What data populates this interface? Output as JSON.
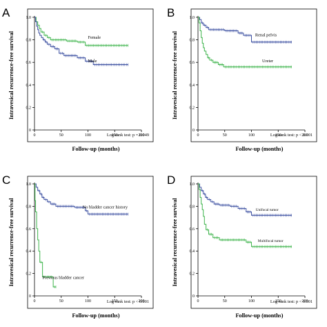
{
  "chart_data": [
    {
      "type": "line",
      "panel_label": "A",
      "title": "",
      "xlabel": "Follow-up (months)",
      "ylabel": "Intravesical recurrence-free survival",
      "xlim": [
        0,
        200
      ],
      "ylim": [
        0,
        1.0
      ],
      "x_ticks": [
        0,
        50,
        100,
        150,
        200
      ],
      "y_ticks": [
        0,
        0.2,
        0.4,
        0.6,
        0.8,
        1.0
      ],
      "y_tick_labels": [
        "0",
        "0.2",
        "0.4",
        "0.6",
        "0.8",
        "1.0"
      ],
      "annotation": "Log-rank test: p = 0.049",
      "series": [
        {
          "name": "Female",
          "color": "#3cb34a",
          "label_at": [
            100,
            0.81
          ],
          "steps": [
            [
              0,
              1.0
            ],
            [
              3,
              0.96
            ],
            [
              6,
              0.93
            ],
            [
              9,
              0.9
            ],
            [
              12,
              0.87
            ],
            [
              18,
              0.84
            ],
            [
              24,
              0.82
            ],
            [
              30,
              0.8
            ],
            [
              60,
              0.79
            ],
            [
              80,
              0.78
            ],
            [
              95,
              0.75
            ],
            [
              175,
              0.75
            ]
          ]
        },
        {
          "name": "Male",
          "color": "#3a4ea0",
          "label_at": [
            100,
            0.6
          ],
          "steps": [
            [
              0,
              1.0
            ],
            [
              2,
              0.96
            ],
            [
              4,
              0.92
            ],
            [
              6,
              0.89
            ],
            [
              8,
              0.86
            ],
            [
              10,
              0.84
            ],
            [
              13,
              0.82
            ],
            [
              16,
              0.8
            ],
            [
              20,
              0.78
            ],
            [
              24,
              0.76
            ],
            [
              30,
              0.74
            ],
            [
              38,
              0.72
            ],
            [
              46,
              0.68
            ],
            [
              55,
              0.66
            ],
            [
              80,
              0.64
            ],
            [
              95,
              0.61
            ],
            [
              110,
              0.58
            ],
            [
              175,
              0.58
            ]
          ]
        }
      ]
    },
    {
      "type": "line",
      "panel_label": "B",
      "title": "",
      "xlabel": "Follow-up (months)",
      "ylabel": "Intravesical recurrence-free survival",
      "xlim": [
        0,
        200
      ],
      "ylim": [
        0,
        1.0
      ],
      "x_ticks": [
        0,
        50,
        100,
        150,
        200
      ],
      "y_ticks": [
        0,
        0.2,
        0.4,
        0.6,
        0.8,
        1.0
      ],
      "y_tick_labels": [
        "0",
        "0.2",
        "0.4",
        "0.6",
        "0.8",
        "1.0"
      ],
      "annotation": "Log-rank test: p < 0.001",
      "series": [
        {
          "name": "Renal pelvis",
          "color": "#3a4ea0",
          "label_at": [
            107,
            0.83
          ],
          "steps": [
            [
              0,
              1.0
            ],
            [
              3,
              0.98
            ],
            [
              6,
              0.95
            ],
            [
              10,
              0.93
            ],
            [
              15,
              0.91
            ],
            [
              20,
              0.89
            ],
            [
              50,
              0.88
            ],
            [
              75,
              0.86
            ],
            [
              85,
              0.84
            ],
            [
              100,
              0.78
            ],
            [
              175,
              0.78
            ]
          ]
        },
        {
          "name": "Ureter",
          "color": "#3cb34a",
          "label_at": [
            120,
            0.6
          ],
          "steps": [
            [
              0,
              1.0
            ],
            [
              2,
              0.95
            ],
            [
              4,
              0.88
            ],
            [
              6,
              0.82
            ],
            [
              8,
              0.77
            ],
            [
              10,
              0.73
            ],
            [
              12,
              0.7
            ],
            [
              15,
              0.67
            ],
            [
              18,
              0.64
            ],
            [
              22,
              0.62
            ],
            [
              28,
              0.6
            ],
            [
              38,
              0.58
            ],
            [
              48,
              0.56
            ],
            [
              175,
              0.56
            ]
          ]
        }
      ]
    },
    {
      "type": "line",
      "panel_label": "C",
      "title": "",
      "xlabel": "Follow-up (months)",
      "ylabel": "Intravesical recurrence-free survival",
      "xlim": [
        0,
        200
      ],
      "ylim": [
        0,
        1.0
      ],
      "x_ticks": [
        0,
        50,
        100,
        150,
        200
      ],
      "y_ticks": [
        0,
        0.2,
        0.4,
        0.6,
        0.8,
        1.0
      ],
      "y_tick_labels": [
        "0",
        "0.2",
        "0.4",
        "0.6",
        "0.8",
        "1.0"
      ],
      "annotation": "Log-rank test: p < 0.001",
      "series": [
        {
          "name": "No bladder cancer history",
          "color": "#3a4ea0",
          "label_at": [
            90,
            0.78
          ],
          "steps": [
            [
              0,
              1.0
            ],
            [
              3,
              0.97
            ],
            [
              6,
              0.94
            ],
            [
              10,
              0.91
            ],
            [
              14,
              0.88
            ],
            [
              18,
              0.86
            ],
            [
              24,
              0.84
            ],
            [
              30,
              0.82
            ],
            [
              40,
              0.8
            ],
            [
              75,
              0.79
            ],
            [
              95,
              0.76
            ],
            [
              100,
              0.73
            ],
            [
              175,
              0.73
            ]
          ]
        },
        {
          "name": "Previous bladder cancer",
          "color": "#3cb34a",
          "label_at": [
            15,
            0.15
          ],
          "steps": [
            [
              0,
              1.0
            ],
            [
              1,
              0.85
            ],
            [
              2,
              0.75
            ],
            [
              4,
              0.6
            ],
            [
              6,
              0.5
            ],
            [
              8,
              0.4
            ],
            [
              10,
              0.3
            ],
            [
              15,
              0.17
            ],
            [
              35,
              0.08
            ],
            [
              40,
              0.08
            ]
          ]
        }
      ]
    },
    {
      "type": "line",
      "panel_label": "D",
      "title": "",
      "xlabel": "Follow-up (months)",
      "ylabel": "Intravesical recurrence-free survival",
      "xlim": [
        0,
        200
      ],
      "ylim": [
        0,
        1.0
      ],
      "x_ticks": [
        0,
        50,
        100,
        150,
        200
      ],
      "y_ticks": [
        0,
        0.2,
        0.4,
        0.6,
        0.8,
        1.0
      ],
      "y_tick_labels": [
        "0",
        "0.2",
        "0.4",
        "0.6",
        "0.8",
        "1.0"
      ],
      "annotation": "Log-rank test: p < 0.001",
      "series": [
        {
          "name": "Unifocal tumor",
          "color": "#3a4ea0",
          "label_at": [
            108,
            0.76
          ],
          "steps": [
            [
              0,
              1.0
            ],
            [
              3,
              0.97
            ],
            [
              6,
              0.94
            ],
            [
              10,
              0.91
            ],
            [
              14,
              0.88
            ],
            [
              18,
              0.86
            ],
            [
              24,
              0.84
            ],
            [
              30,
              0.82
            ],
            [
              40,
              0.81
            ],
            [
              60,
              0.8
            ],
            [
              75,
              0.78
            ],
            [
              90,
              0.75
            ],
            [
              100,
              0.72
            ],
            [
              175,
              0.72
            ]
          ]
        },
        {
          "name": "Multifocal tumor",
          "color": "#3cb34a",
          "label_at": [
            112,
            0.48
          ],
          "steps": [
            [
              0,
              1.0
            ],
            [
              2,
              0.95
            ],
            [
              4,
              0.88
            ],
            [
              6,
              0.82
            ],
            [
              8,
              0.77
            ],
            [
              10,
              0.71
            ],
            [
              12,
              0.64
            ],
            [
              15,
              0.59
            ],
            [
              20,
              0.55
            ],
            [
              28,
              0.52
            ],
            [
              40,
              0.5
            ],
            [
              90,
              0.48
            ],
            [
              100,
              0.44
            ],
            [
              175,
              0.44
            ]
          ]
        }
      ]
    }
  ]
}
